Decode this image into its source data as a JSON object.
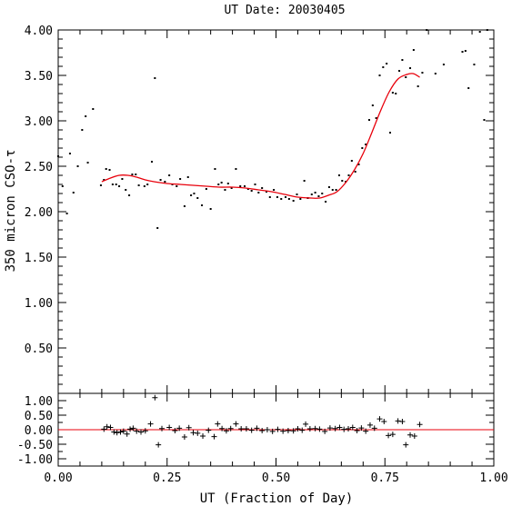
{
  "chart_data": {
    "title": "UT Date: 20030405",
    "xlabel": "UT (Fraction of Day)",
    "x_ticks": [
      "0.00",
      "0.25",
      "0.50",
      "0.75",
      "1.00"
    ],
    "xlim": [
      0,
      1
    ],
    "panels": [
      {
        "id": "main",
        "type": "scatter",
        "ylabel": "350 micron CSO-τ",
        "ylim": [
          0,
          4
        ],
        "y_ticks": [
          "0.50",
          "1.00",
          "1.50",
          "2.00",
          "2.50",
          "3.00",
          "3.50",
          "4.00"
        ],
        "series": [
          {
            "kind": "points",
            "color": "#000000",
            "points": [
              [
                0.0,
                2.61
              ],
              [
                0.01,
                2.28
              ],
              [
                0.02,
                1.98
              ],
              [
                0.027,
                2.64
              ],
              [
                0.035,
                2.21
              ],
              [
                0.045,
                2.5
              ],
              [
                0.055,
                2.9
              ],
              [
                0.063,
                3.05
              ],
              [
                0.068,
                2.54
              ],
              [
                0.08,
                3.13
              ],
              [
                0.098,
                2.29
              ],
              [
                0.105,
                2.35
              ],
              [
                0.11,
                2.47
              ],
              [
                0.118,
                2.46
              ],
              [
                0.125,
                2.3
              ],
              [
                0.133,
                2.3
              ],
              [
                0.14,
                2.28
              ],
              [
                0.147,
                2.36
              ],
              [
                0.155,
                2.24
              ],
              [
                0.163,
                2.18
              ],
              [
                0.17,
                2.41
              ],
              [
                0.178,
                2.41
              ],
              [
                0.185,
                2.29
              ],
              [
                0.198,
                2.28
              ],
              [
                0.205,
                2.3
              ],
              [
                0.215,
                2.55
              ],
              [
                0.222,
                3.47
              ],
              [
                0.228,
                1.82
              ],
              [
                0.235,
                2.35
              ],
              [
                0.245,
                2.33
              ],
              [
                0.255,
                2.4
              ],
              [
                0.262,
                2.3
              ],
              [
                0.272,
                2.28
              ],
              [
                0.28,
                2.36
              ],
              [
                0.29,
                2.06
              ],
              [
                0.298,
                2.38
              ],
              [
                0.305,
                2.18
              ],
              [
                0.312,
                2.2
              ],
              [
                0.32,
                2.15
              ],
              [
                0.33,
                2.07
              ],
              [
                0.34,
                2.25
              ],
              [
                0.35,
                2.03
              ],
              [
                0.36,
                2.47
              ],
              [
                0.368,
                2.3
              ],
              [
                0.375,
                2.32
              ],
              [
                0.383,
                2.24
              ],
              [
                0.39,
                2.31
              ],
              [
                0.398,
                2.26
              ],
              [
                0.408,
                2.47
              ],
              [
                0.418,
                2.28
              ],
              [
                0.428,
                2.28
              ],
              [
                0.436,
                2.25
              ],
              [
                0.444,
                2.23
              ],
              [
                0.452,
                2.3
              ],
              [
                0.46,
                2.21
              ],
              [
                0.468,
                2.26
              ],
              [
                0.478,
                2.22
              ],
              [
                0.486,
                2.16
              ],
              [
                0.495,
                2.24
              ],
              [
                0.503,
                2.16
              ],
              [
                0.512,
                2.14
              ],
              [
                0.522,
                2.16
              ],
              [
                0.53,
                2.14
              ],
              [
                0.54,
                2.12
              ],
              [
                0.548,
                2.19
              ],
              [
                0.556,
                2.14
              ],
              [
                0.565,
                2.34
              ],
              [
                0.573,
                2.15
              ],
              [
                0.582,
                2.19
              ],
              [
                0.59,
                2.21
              ],
              [
                0.598,
                2.17
              ],
              [
                0.606,
                2.2
              ],
              [
                0.614,
                2.11
              ],
              [
                0.622,
                2.27
              ],
              [
                0.63,
                2.24
              ],
              [
                0.638,
                2.24
              ],
              [
                0.645,
                2.4
              ],
              [
                0.652,
                2.34
              ],
              [
                0.66,
                2.33
              ],
              [
                0.667,
                2.4
              ],
              [
                0.674,
                2.56
              ],
              [
                0.682,
                2.44
              ],
              [
                0.69,
                2.52
              ],
              [
                0.698,
                2.7
              ],
              [
                0.706,
                2.74
              ],
              [
                0.714,
                3.01
              ],
              [
                0.722,
                3.17
              ],
              [
                0.73,
                3.03
              ],
              [
                0.738,
                3.5
              ],
              [
                0.746,
                3.59
              ],
              [
                0.754,
                3.63
              ],
              [
                0.762,
                2.87
              ],
              [
                0.768,
                3.31
              ],
              [
                0.775,
                3.3
              ],
              [
                0.783,
                3.55
              ],
              [
                0.79,
                3.67
              ],
              [
                0.798,
                3.48
              ],
              [
                0.808,
                3.58
              ],
              [
                0.816,
                3.78
              ],
              [
                0.826,
                3.38
              ],
              [
                0.836,
                3.53
              ],
              [
                0.846,
                4.0
              ],
              [
                0.866,
                3.52
              ],
              [
                0.885,
                3.62
              ],
              [
                0.928,
                3.76
              ],
              [
                0.935,
                3.77
              ],
              [
                0.942,
                3.36
              ],
              [
                0.955,
                3.62
              ],
              [
                0.968,
                3.98
              ],
              [
                0.978,
                3.01
              ],
              [
                0.985,
                4.0
              ]
            ]
          },
          {
            "kind": "fit",
            "color": "#e8000b",
            "x_range": [
              0.1,
              0.83
            ],
            "points": [
              [
                0.1,
                2.33
              ],
              [
                0.12,
                2.37
              ],
              [
                0.14,
                2.4
              ],
              [
                0.16,
                2.4
              ],
              [
                0.18,
                2.38
              ],
              [
                0.2,
                2.35
              ],
              [
                0.22,
                2.33
              ],
              [
                0.25,
                2.31
              ],
              [
                0.28,
                2.3
              ],
              [
                0.31,
                2.29
              ],
              [
                0.34,
                2.28
              ],
              [
                0.37,
                2.27
              ],
              [
                0.4,
                2.27
              ],
              [
                0.43,
                2.26
              ],
              [
                0.46,
                2.24
              ],
              [
                0.49,
                2.22
              ],
              [
                0.52,
                2.19
              ],
              [
                0.55,
                2.16
              ],
              [
                0.58,
                2.15
              ],
              [
                0.6,
                2.15
              ],
              [
                0.62,
                2.18
              ],
              [
                0.64,
                2.22
              ],
              [
                0.66,
                2.32
              ],
              [
                0.68,
                2.46
              ],
              [
                0.7,
                2.64
              ],
              [
                0.72,
                2.87
              ],
              [
                0.74,
                3.11
              ],
              [
                0.76,
                3.32
              ],
              [
                0.78,
                3.46
              ],
              [
                0.8,
                3.51
              ],
              [
                0.815,
                3.52
              ],
              [
                0.83,
                3.48
              ]
            ]
          }
        ]
      },
      {
        "id": "residuals",
        "type": "scatter",
        "ylabel": "",
        "ylim": [
          -1.25,
          1.25
        ],
        "y_ticks": [
          "1.00",
          "0.50",
          "0.00",
          "-0.50",
          "-1.00"
        ],
        "reference_line": {
          "y": 0,
          "color": "#e8000b"
        },
        "series": [
          {
            "kind": "plus-markers",
            "color": "#000000",
            "points": [
              [
                0.105,
                0.02
              ],
              [
                0.112,
                0.1
              ],
              [
                0.12,
                0.08
              ],
              [
                0.128,
                -0.08
              ],
              [
                0.135,
                -0.1
              ],
              [
                0.143,
                -0.08
              ],
              [
                0.15,
                -0.05
              ],
              [
                0.158,
                -0.15
              ],
              [
                0.165,
                0.02
              ],
              [
                0.172,
                0.05
              ],
              [
                0.18,
                -0.05
              ],
              [
                0.19,
                -0.08
              ],
              [
                0.2,
                -0.04
              ],
              [
                0.212,
                0.2
              ],
              [
                0.222,
                1.1
              ],
              [
                0.23,
                -0.52
              ],
              [
                0.238,
                0.04
              ],
              [
                0.255,
                0.08
              ],
              [
                0.268,
                -0.03
              ],
              [
                0.278,
                0.05
              ],
              [
                0.29,
                -0.25
              ],
              [
                0.3,
                0.07
              ],
              [
                0.31,
                -0.1
              ],
              [
                0.32,
                -0.12
              ],
              [
                0.332,
                -0.22
              ],
              [
                0.345,
                -0.02
              ],
              [
                0.358,
                -0.24
              ],
              [
                0.366,
                0.2
              ],
              [
                0.376,
                0.04
              ],
              [
                0.386,
                -0.04
              ],
              [
                0.396,
                0.04
              ],
              [
                0.408,
                0.2
              ],
              [
                0.42,
                0.03
              ],
              [
                0.432,
                0.03
              ],
              [
                0.444,
                -0.02
              ],
              [
                0.456,
                0.05
              ],
              [
                0.468,
                -0.03
              ],
              [
                0.48,
                0.0
              ],
              [
                0.492,
                -0.06
              ],
              [
                0.504,
                0.01
              ],
              [
                0.516,
                -0.05
              ],
              [
                0.528,
                -0.03
              ],
              [
                0.54,
                -0.04
              ],
              [
                0.55,
                0.03
              ],
              [
                0.56,
                -0.02
              ],
              [
                0.568,
                0.19
              ],
              [
                0.578,
                0.03
              ],
              [
                0.59,
                0.04
              ],
              [
                0.6,
                0.02
              ],
              [
                0.612,
                -0.06
              ],
              [
                0.624,
                0.06
              ],
              [
                0.636,
                0.04
              ],
              [
                0.646,
                0.08
              ],
              [
                0.656,
                0.01
              ],
              [
                0.666,
                0.03
              ],
              [
                0.676,
                0.08
              ],
              [
                0.686,
                -0.03
              ],
              [
                0.696,
                0.06
              ],
              [
                0.706,
                -0.05
              ],
              [
                0.716,
                0.16
              ],
              [
                0.726,
                0.05
              ],
              [
                0.738,
                0.37
              ],
              [
                0.748,
                0.28
              ],
              [
                0.758,
                -0.2
              ],
              [
                0.768,
                -0.16
              ],
              [
                0.78,
                0.3
              ],
              [
                0.79,
                0.28
              ],
              [
                0.798,
                -0.52
              ],
              [
                0.808,
                -0.18
              ],
              [
                0.818,
                -0.22
              ],
              [
                0.83,
                0.18
              ]
            ]
          }
        ]
      }
    ]
  }
}
